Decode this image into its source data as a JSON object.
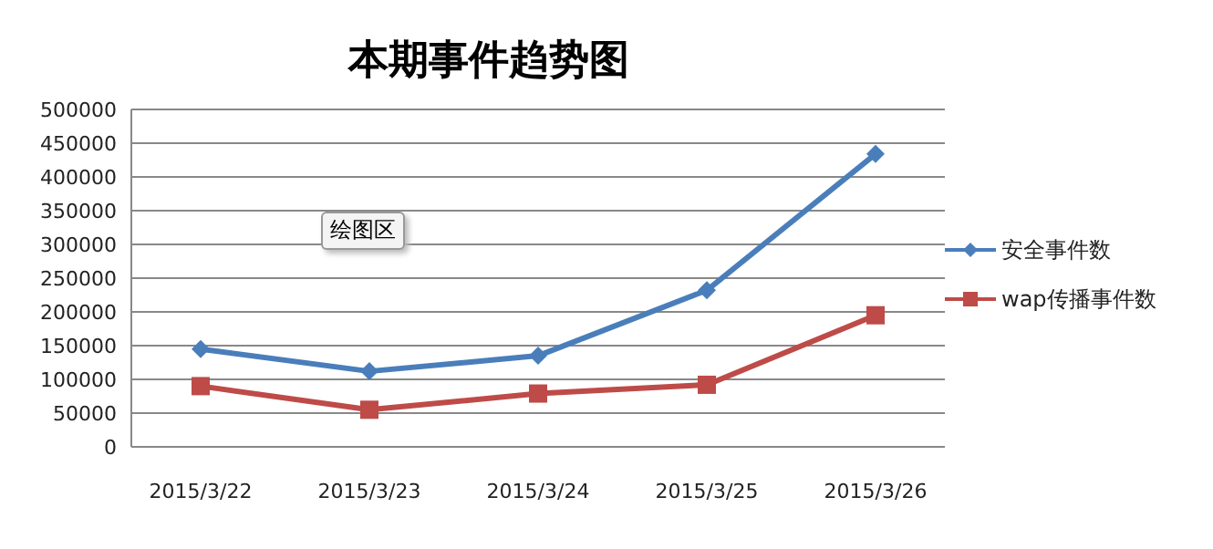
{
  "chart_data": {
    "type": "line",
    "title": "本期事件趋势图",
    "annotations": [
      "绘图区"
    ],
    "categories": [
      "2015/3/22",
      "2015/3/23",
      "2015/3/24",
      "2015/3/25",
      "2015/3/26"
    ],
    "series": [
      {
        "name": "安全事件数",
        "color": "#4a7ebb",
        "marker": "diamond",
        "values": [
          145000,
          112000,
          135000,
          232000,
          434000
        ]
      },
      {
        "name": "wap传播事件数",
        "color": "#be4b48",
        "marker": "square",
        "values": [
          90000,
          55000,
          79000,
          92000,
          195000
        ]
      }
    ],
    "ylim": [
      0,
      500000
    ],
    "yticks": [
      0,
      50000,
      100000,
      150000,
      200000,
      250000,
      300000,
      350000,
      400000,
      450000,
      500000
    ],
    "grid": "y",
    "legend": "right"
  }
}
